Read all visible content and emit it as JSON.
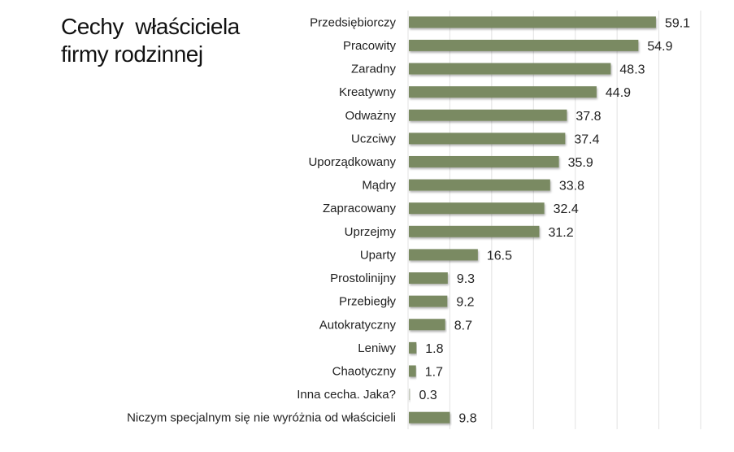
{
  "chart_data": {
    "type": "bar",
    "orientation": "horizontal",
    "title_lines": [
      "Cechy  właściciela",
      "firmy rodzinnej"
    ],
    "categories": [
      "Przedsiębiorczy",
      "Pracowity",
      "Zaradny",
      "Kreatywny",
      "Odważny",
      "Uczciwy",
      "Uporządkowany",
      "Mądry",
      "Zapracowany",
      "Uprzejmy",
      "Uparty",
      "Prostolinijny",
      "Przebiegły",
      "Autokratyczny",
      "Leniwy",
      "Chaotyczny",
      "Inna cecha. Jaka?",
      "Niczym specjalnym się nie wyróżnia od właścicieli"
    ],
    "values": [
      59.1,
      54.9,
      48.3,
      44.9,
      37.8,
      37.4,
      35.9,
      33.8,
      32.4,
      31.2,
      16.5,
      9.3,
      9.2,
      8.7,
      1.8,
      1.7,
      0.3,
      9.8
    ],
    "value_labels": [
      "59.1",
      "54.9",
      "48.3",
      "44.9",
      "37.8",
      "37.4",
      "35.9",
      "33.8",
      "32.4",
      "31.2",
      "16.5",
      "9.3",
      "9.2",
      "8.7",
      "1.8",
      "1.7",
      "0.3",
      "9.8"
    ],
    "xlim": [
      0,
      70
    ],
    "grid": true,
    "bar_color": "#7a8a62",
    "grid_color": "#e2e2e2"
  }
}
